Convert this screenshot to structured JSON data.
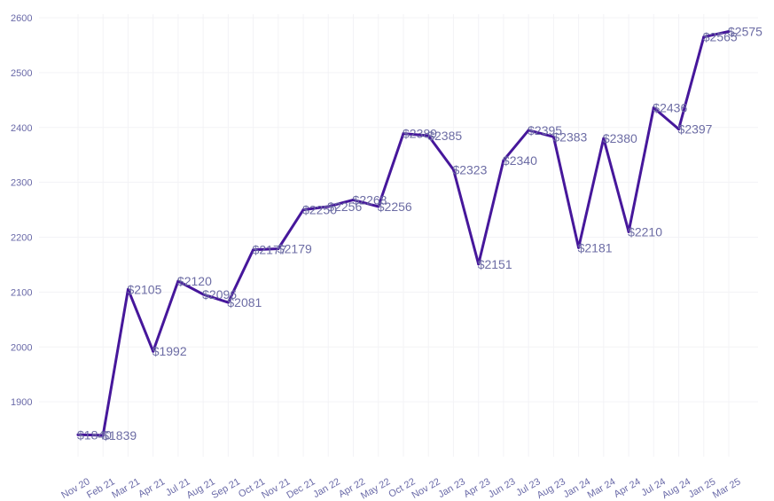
{
  "chart_data": {
    "type": "line",
    "categories": [
      "Nov 20",
      "Feb 21",
      "Mar 21",
      "Apr 21",
      "Jul 21",
      "Aug 21",
      "Sep 21",
      "Oct 21",
      "Nov 21",
      "Dec 21",
      "Jan 22",
      "Apr 22",
      "May 22",
      "Oct 22",
      "Nov 22",
      "Jan 23",
      "Apr 23",
      "Jun 23",
      "Jul 23",
      "Aug 23",
      "Jan 24",
      "Mar 24",
      "Apr 24",
      "Jul 24",
      "Aug 24",
      "Jan 25",
      "Mar 25"
    ],
    "series": [
      {
        "values": [
          1840,
          1839,
          2105,
          1992,
          2120,
          2096,
          2081,
          2177,
          2179,
          2250,
          2256,
          2268,
          2256,
          2389,
          2385,
          2323,
          2151,
          2340,
          2395,
          2383,
          2181,
          2380,
          2210,
          2436,
          2397,
          2565,
          2575
        ],
        "labels": [
          "$1840",
          "$1839",
          "$2105",
          "$1992",
          "$2120",
          "$2096",
          "$2081",
          "$2177",
          "$2179",
          "$2250",
          "$2256",
          "$2268",
          "$2256",
          "$2389",
          "$2385",
          "$2323",
          "$2151",
          "$2340",
          "$2395",
          "$2383",
          "$2181",
          "$2380",
          "$2210",
          "$2436",
          "$2397",
          "$2565",
          "$2575"
        ],
        "color": "#46179b"
      }
    ],
    "y_ticks": [
      1900,
      2000,
      2100,
      2200,
      2300,
      2400,
      2500,
      2600
    ],
    "ylim": [
      1800,
      2600
    ],
    "grid": true,
    "legend": "none",
    "title": "",
    "xlabel": "",
    "ylabel": ""
  }
}
